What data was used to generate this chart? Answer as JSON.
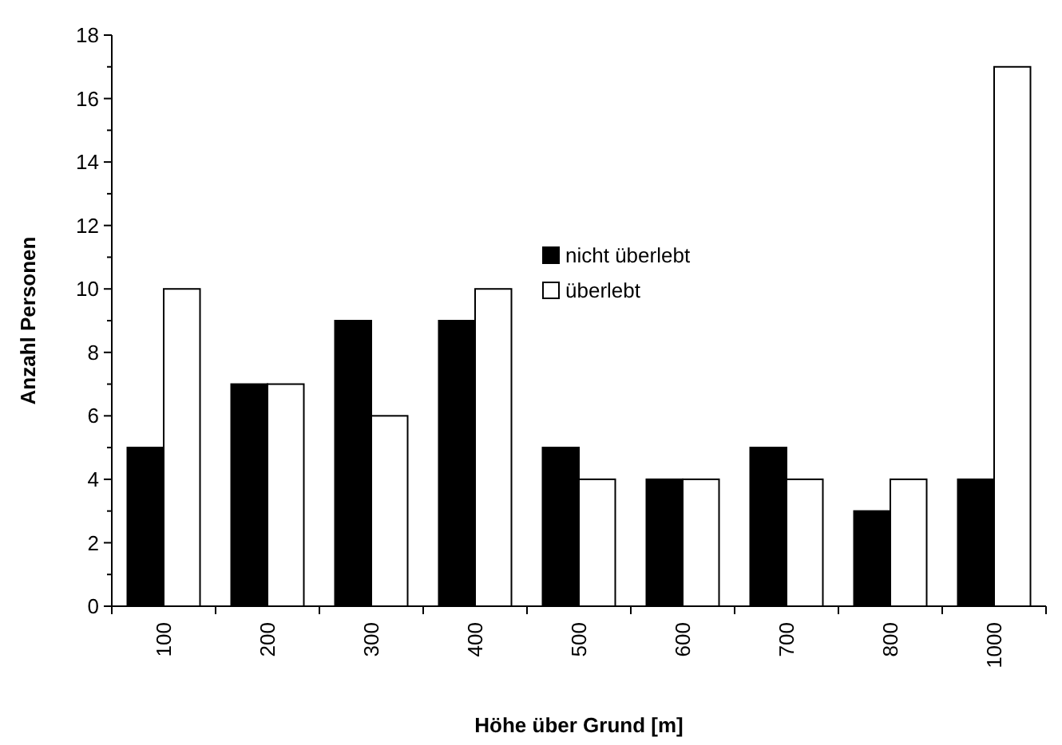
{
  "chart_data": {
    "type": "bar",
    "xlabel": "Höhe über Grund [m]",
    "ylabel": "Anzahl Personen",
    "categories": [
      "100",
      "200",
      "300",
      "400",
      "500",
      "600",
      "700",
      "800",
      "1000"
    ],
    "series": [
      {
        "name": "nicht überlebt",
        "color": "#000000",
        "values": [
          5,
          7,
          9,
          9,
          5,
          4,
          5,
          3,
          4
        ]
      },
      {
        "name": "überlebt",
        "color": "#ffffff",
        "values": [
          10,
          7,
          6,
          10,
          4,
          4,
          4,
          4,
          17
        ]
      }
    ],
    "ylim": [
      0,
      18
    ],
    "yticks": [
      0,
      2,
      4,
      6,
      8,
      10,
      12,
      14,
      16,
      18
    ],
    "grid": false,
    "legend": "top"
  }
}
